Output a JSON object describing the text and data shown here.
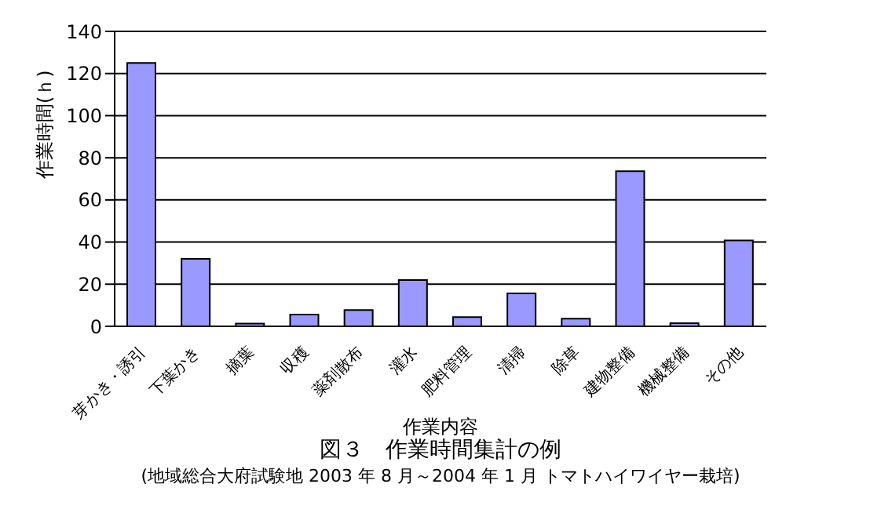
{
  "chart_data": {
    "type": "bar",
    "title": "図３　作業時間集計の例",
    "subtitle": "(地域総合大府試験地 2003 年 8 月～2004 年 1 月 トマトハイワイヤー栽培)",
    "xlabel": "作業内容",
    "ylabel": "作業時間(ｈ)",
    "categories": [
      "芽かき・誘引",
      "下葉かき",
      "摘葉",
      "収穫",
      "薬剤散布",
      "灌水",
      "肥料管理",
      "清掃",
      "除草",
      "建物整備",
      "機械整備",
      "その他"
    ],
    "values": [
      125,
      32,
      1.3,
      5.6,
      7.7,
      22,
      4.4,
      15.6,
      3.6,
      73.6,
      1.5,
      40.8
    ],
    "color": "#9999ff",
    "ylim": [
      0,
      140
    ],
    "yticks": [
      0,
      20,
      40,
      60,
      80,
      100,
      120,
      140
    ],
    "grid": "y"
  }
}
